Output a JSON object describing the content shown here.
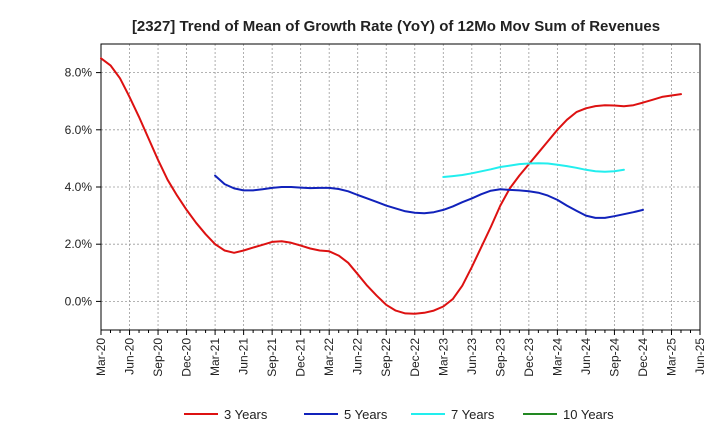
{
  "chart_data": {
    "type": "line",
    "title": "[2327]  Trend of Mean of Growth Rate (YoY) of 12Mo Mov Sum of Revenues",
    "xlabel": "",
    "ylabel": "",
    "x_tick_labels": [
      "Mar-20",
      "Jun-20",
      "Sep-20",
      "Dec-20",
      "Mar-21",
      "Jun-21",
      "Sep-21",
      "Dec-21",
      "Mar-22",
      "Jun-22",
      "Sep-22",
      "Dec-22",
      "Mar-23",
      "Jun-23",
      "Sep-23",
      "Dec-23",
      "Mar-24",
      "Jun-24",
      "Sep-24",
      "Dec-24",
      "Mar-25",
      "Jun-25"
    ],
    "y_ticks": [
      0,
      2,
      4,
      6,
      8
    ],
    "y_tick_labels": [
      "0.0%",
      "2.0%",
      "4.0%",
      "6.0%",
      "8.0%"
    ],
    "ylim": [
      -1.0,
      9.0
    ],
    "x_range_months": [
      0,
      63
    ],
    "grid": true,
    "legend_position": "bottom",
    "series": [
      {
        "name": "3 Years",
        "color": "#dd1111",
        "start_month": 0,
        "values": [
          8.5,
          8.25,
          7.8,
          7.15,
          6.45,
          5.7,
          4.95,
          4.25,
          3.7,
          3.2,
          2.75,
          2.35,
          2.0,
          1.78,
          1.7,
          1.78,
          1.88,
          1.98,
          2.08,
          2.1,
          2.05,
          1.95,
          1.85,
          1.78,
          1.75,
          1.6,
          1.35,
          0.95,
          0.55,
          0.2,
          -0.12,
          -0.32,
          -0.42,
          -0.43,
          -0.4,
          -0.32,
          -0.18,
          0.08,
          0.55,
          1.2,
          1.9,
          2.6,
          3.35,
          3.95,
          4.4,
          4.8,
          5.2,
          5.6,
          6.0,
          6.35,
          6.62,
          6.75,
          6.83,
          6.86,
          6.85,
          6.82,
          6.86,
          6.95,
          7.05,
          7.15,
          7.2,
          7.25
        ]
      },
      {
        "name": "5 Years",
        "color": "#1122bb",
        "start_month": 12,
        "values": [
          4.4,
          4.1,
          3.95,
          3.88,
          3.88,
          3.92,
          3.97,
          4.0,
          4.0,
          3.98,
          3.96,
          3.97,
          3.97,
          3.93,
          3.85,
          3.72,
          3.6,
          3.48,
          3.35,
          3.25,
          3.15,
          3.1,
          3.08,
          3.12,
          3.2,
          3.32,
          3.47,
          3.6,
          3.75,
          3.87,
          3.92,
          3.9,
          3.88,
          3.85,
          3.8,
          3.7,
          3.55,
          3.35,
          3.17,
          3.0,
          2.92,
          2.92,
          2.98,
          3.05,
          3.12,
          3.2
        ]
      },
      {
        "name": "7 Years",
        "color": "#22eeee",
        "start_month": 36,
        "values": [
          4.35,
          4.38,
          4.42,
          4.48,
          4.55,
          4.62,
          4.7,
          4.75,
          4.8,
          4.82,
          4.83,
          4.82,
          4.78,
          4.73,
          4.67,
          4.6,
          4.55,
          4.53,
          4.55,
          4.6
        ]
      },
      {
        "name": "10 Years",
        "color": "#228822",
        "start_month": 0,
        "values": []
      }
    ]
  }
}
